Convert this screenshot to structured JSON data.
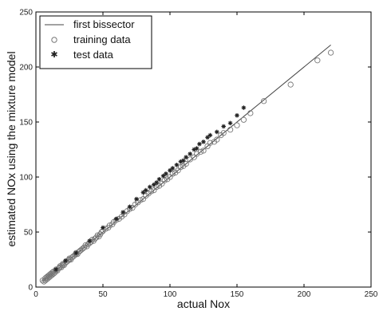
{
  "chart_data": {
    "type": "scatter",
    "xlabel": "actual Nox",
    "ylabel": "estimated NOx using the mixture model",
    "xlim": [
      0,
      250
    ],
    "ylim": [
      0,
      250
    ],
    "xticks": [
      0,
      50,
      100,
      150,
      200,
      250
    ],
    "yticks": [
      0,
      50,
      100,
      150,
      200,
      250
    ],
    "grid": false,
    "legend_position": "top-left",
    "colors": {
      "line": "#444444",
      "training": "#777777",
      "test": "#222222",
      "axes": "#000000"
    },
    "series": [
      {
        "name": "first bissector",
        "type": "line",
        "x": [
          5,
          220
        ],
        "y": [
          5,
          220
        ]
      },
      {
        "name": "training data",
        "marker": "circle",
        "x": [
          5,
          6,
          7,
          7,
          8,
          8,
          9,
          9,
          10,
          10,
          11,
          11,
          12,
          12,
          13,
          13,
          14,
          15,
          15,
          16,
          17,
          18,
          18,
          19,
          20,
          20,
          21,
          22,
          23,
          24,
          25,
          25,
          26,
          27,
          28,
          29,
          30,
          30,
          31,
          32,
          33,
          34,
          35,
          36,
          37,
          38,
          39,
          40,
          41,
          42,
          43,
          44,
          45,
          46,
          47,
          48,
          49,
          50,
          52,
          54,
          55,
          57,
          58,
          60,
          62,
          64,
          66,
          68,
          70,
          72,
          74,
          76,
          78,
          80,
          82,
          84,
          86,
          88,
          90,
          92,
          94,
          96,
          98,
          100,
          102,
          104,
          106,
          108,
          110,
          112,
          115,
          118,
          120,
          123,
          125,
          128,
          130,
          133,
          135,
          138,
          140,
          145,
          150,
          155,
          160,
          170,
          190,
          210,
          220
        ],
        "y": [
          6,
          5,
          8,
          6,
          7,
          9,
          8,
          10,
          9,
          11,
          10,
          12,
          13,
          11,
          12,
          14,
          13,
          15,
          16,
          15,
          17,
          18,
          19,
          18,
          20,
          21,
          20,
          22,
          23,
          24,
          25,
          26,
          25,
          27,
          28,
          29,
          30,
          31,
          30,
          32,
          33,
          34,
          35,
          36,
          38,
          37,
          39,
          40,
          41,
          43,
          42,
          44,
          45,
          47,
          46,
          48,
          50,
          51,
          53,
          54,
          56,
          57,
          59,
          61,
          62,
          64,
          66,
          69,
          71,
          72,
          75,
          77,
          79,
          80,
          83,
          85,
          87,
          88,
          91,
          92,
          94,
          97,
          98,
          100,
          103,
          104,
          106,
          109,
          110,
          112,
          116,
          118,
          121,
          123,
          124,
          128,
          131,
          132,
          134,
          138,
          140,
          143,
          147,
          152,
          158,
          169,
          184,
          206,
          213
        ]
      },
      {
        "name": "test data",
        "marker": "star",
        "x": [
          15,
          22,
          30,
          40,
          50,
          60,
          65,
          70,
          75,
          80,
          82,
          85,
          88,
          90,
          92,
          95,
          97,
          100,
          102,
          105,
          108,
          110,
          112,
          115,
          118,
          120,
          122,
          125,
          128,
          130,
          135,
          140,
          145,
          150,
          155
        ],
        "y": [
          16,
          24,
          31,
          42,
          54,
          62,
          68,
          73,
          80,
          86,
          88,
          91,
          93,
          95,
          98,
          101,
          103,
          106,
          108,
          111,
          114,
          115,
          118,
          121,
          125,
          126,
          130,
          132,
          136,
          138,
          141,
          146,
          149,
          156,
          163
        ]
      }
    ]
  }
}
